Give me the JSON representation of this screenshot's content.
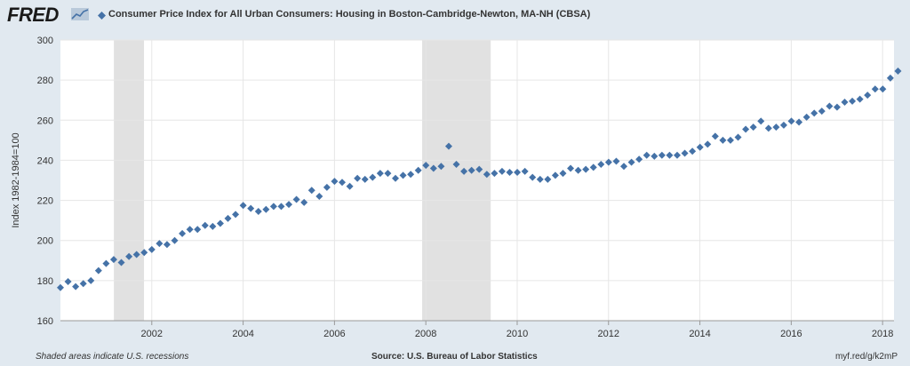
{
  "header": {
    "logo_text": "FRED",
    "logo_icon": "trend-line-icon",
    "title": "Consumer Price Index for All Urban Consumers: Housing in Boston-Cambridge-Newton, MA-NH (CBSA)"
  },
  "footer": {
    "note": "Shaded areas indicate U.S. recessions",
    "source": "Source: U.S. Bureau of Labor Statistics",
    "link": "myf.red/g/k2mP"
  },
  "colors": {
    "background": "#e1e9f0",
    "plot_area": "#ffffff",
    "series": "#4572a7",
    "recession": "#e1e1e1",
    "grid": "#e6e6e6"
  },
  "chart_data": {
    "type": "scatter",
    "title": "Consumer Price Index for All Urban Consumers: Housing in Boston-Cambridge-Newton, MA-NH (CBSA)",
    "xlabel": "",
    "ylabel": "Index 1982-1984=100",
    "xlim": [
      2000.0,
      2018.25
    ],
    "ylim": [
      160,
      300
    ],
    "y_ticks": [
      160,
      180,
      200,
      220,
      240,
      260,
      280,
      300
    ],
    "x_ticks": [
      2002,
      2004,
      2006,
      2008,
      2010,
      2012,
      2014,
      2016,
      2018
    ],
    "grid": true,
    "recessions": [
      [
        2001.17,
        2001.83
      ],
      [
        2007.92,
        2009.42
      ]
    ],
    "x_start": 2000.0,
    "x_step": 0.1667,
    "series": [
      {
        "values": [
          176.5,
          179.5,
          177.0,
          178.5,
          180.0,
          185.0,
          188.5,
          190.5,
          189.0,
          192.0,
          193.0,
          194.0,
          195.5,
          198.5,
          198.0,
          200.0,
          203.5,
          205.5,
          205.5,
          207.5,
          207.0,
          208.5,
          211.0,
          213.0,
          217.5,
          216.0,
          214.5,
          215.5,
          217.0,
          217.0,
          218.0,
          220.5,
          219.0,
          225.0,
          222.0,
          226.5,
          229.5,
          229.0,
          227.0,
          231.0,
          230.5,
          231.5,
          233.5,
          233.5,
          231.0,
          232.5,
          233.0,
          235.0,
          237.5,
          236.0,
          237.0,
          247.0,
          238.0,
          234.5,
          235.0,
          235.5,
          233.0,
          233.5,
          234.5,
          234.0,
          234.0,
          234.5,
          231.5,
          230.5,
          230.5,
          232.5,
          233.5,
          236.0,
          235.0,
          235.5,
          236.5,
          238.0,
          239.0,
          239.5,
          237.0,
          239.0,
          240.5,
          242.5,
          242.0,
          242.5,
          242.5,
          242.5,
          243.5,
          244.5,
          246.5,
          248.0,
          252.0,
          250.0,
          250.0,
          251.5,
          255.5,
          256.5,
          259.5,
          256.0,
          256.5,
          257.5,
          259.5,
          259.0,
          261.5,
          263.5,
          264.5,
          267.0,
          266.5,
          269.0,
          269.5,
          270.5,
          272.5,
          275.5,
          275.5,
          281.0,
          284.5
        ]
      }
    ]
  }
}
